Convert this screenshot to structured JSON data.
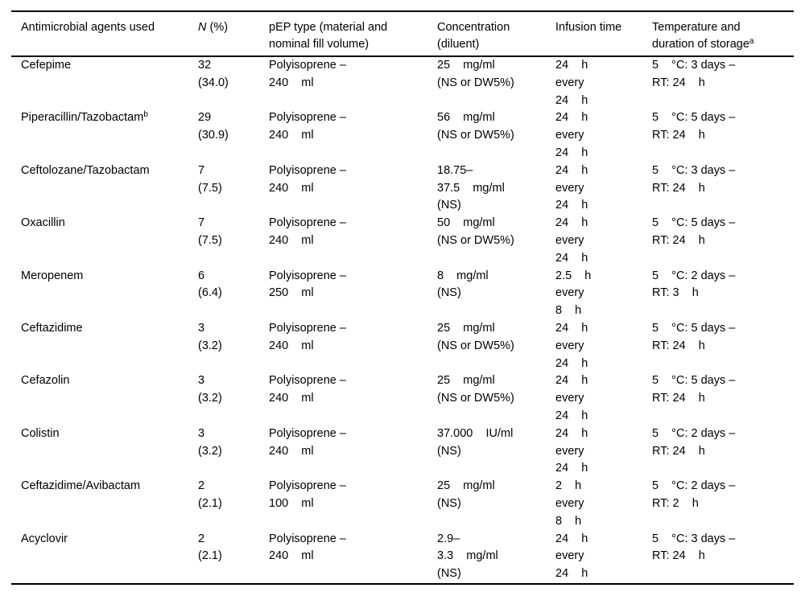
{
  "page": {
    "background": "#ffffff",
    "text_color": "#000000",
    "rule_color": "#000000"
  },
  "table": {
    "columns": [
      {
        "id": "agent",
        "label": "Antimicrobial agents used"
      },
      {
        "id": "n",
        "italic": "N",
        "label": " (%)"
      },
      {
        "id": "pep",
        "label": "pEP type (material and\nnominal fill volume)"
      },
      {
        "id": "concentration",
        "label": "Concentration\n(diluent)"
      },
      {
        "id": "infusion",
        "label": "Infusion time"
      },
      {
        "id": "storage",
        "label": "Temperature and\nduration of storage",
        "sup": "a"
      }
    ],
    "rows": [
      {
        "agent": "Cefepime",
        "agent_sup": "",
        "n": "32\n(34.0)",
        "pep": "Polyisoprene –\n240    ml",
        "concentration": "25    mg/ml\n(NS or DW5%)",
        "infusion": "24    h\nevery\n24    h",
        "storage": "5    °C: 3 days –\nRT: 24    h"
      },
      {
        "agent": "Piperacillin/Tazobactam",
        "agent_sup": "b",
        "n": "29\n(30.9)",
        "pep": "Polyisoprene –\n240    ml",
        "concentration": "56    mg/ml\n(NS or DW5%)",
        "infusion": "24    h\nevery\n24    h",
        "storage": "5    °C: 5 days –\nRT: 24    h"
      },
      {
        "agent": "Ceftolozane/Tazobactam",
        "agent_sup": "",
        "n": "7\n(7.5)",
        "pep": "Polyisoprene –\n240    ml",
        "concentration": "18.75–\n37.5    mg/ml\n(NS)",
        "infusion": "24    h\nevery\n24    h",
        "storage": "5    °C: 3 days –\nRT: 24    h"
      },
      {
        "agent": "Oxacillin",
        "agent_sup": "",
        "n": "7\n(7.5)",
        "pep": "Polyisoprene –\n240    ml",
        "concentration": "50    mg/ml\n(NS or DW5%)",
        "infusion": "24    h\nevery\n24    h",
        "storage": "5    °C: 5 days –\nRT: 24    h"
      },
      {
        "agent": "Meropenem",
        "agent_sup": "",
        "n": "6\n(6.4)",
        "pep": "Polyisoprene –\n250    ml",
        "concentration": "8    mg/ml\n(NS)",
        "infusion": "2.5    h\nevery\n8    h",
        "storage": "5    °C: 2 days –\nRT: 3    h"
      },
      {
        "agent": "Ceftazidime",
        "agent_sup": "",
        "n": "3\n(3.2)",
        "pep": "Polyisoprene –\n240    ml",
        "concentration": "25    mg/ml\n(NS or DW5%)",
        "infusion": "24    h\nevery\n24    h",
        "storage": "5    °C: 5 days –\nRT: 24    h"
      },
      {
        "agent": "Cefazolin",
        "agent_sup": "",
        "n": "3\n(3.2)",
        "pep": "Polyisoprene –\n240    ml",
        "concentration": "25    mg/ml\n(NS or DW5%)",
        "infusion": "24    h\nevery\n24    h",
        "storage": "5    °C: 5 days –\nRT: 24    h"
      },
      {
        "agent": "Colistin",
        "agent_sup": "",
        "n": "3\n(3.2)",
        "pep": "Polyisoprene –\n240    ml",
        "concentration": "37.000    IU/ml\n(NS)",
        "infusion": "24    h\nevery\n24    h",
        "storage": "5    °C: 2 days –\nRT: 24    h"
      },
      {
        "agent": "Ceftazidime/Avibactam",
        "agent_sup": "",
        "n": "2\n(2.1)",
        "pep": "Polyisoprene –\n100    ml",
        "concentration": "25    mg/ml\n(NS)",
        "infusion": "2    h\nevery\n8    h",
        "storage": "5    °C: 2 days –\nRT: 2    h"
      },
      {
        "agent": "Acyclovir",
        "agent_sup": "",
        "n": "2\n(2.1)",
        "pep": "Polyisoprene –\n240    ml",
        "concentration": "2.9–\n3.3    mg/ml\n(NS)",
        "infusion": "24    h\nevery\n24    h",
        "storage": "5    °C: 3 days –\nRT: 24    h"
      }
    ]
  }
}
